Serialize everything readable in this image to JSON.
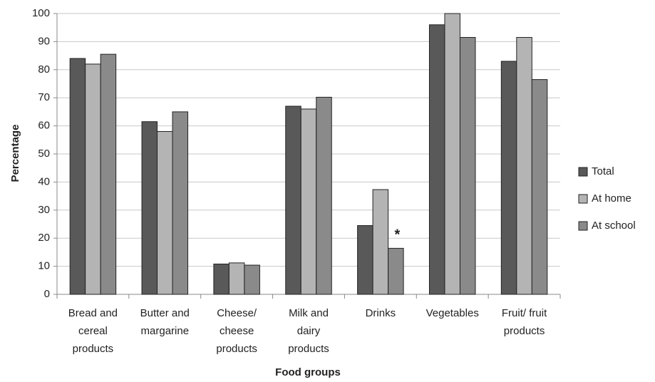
{
  "chart_data": {
    "type": "bar",
    "categories": [
      "Bread and cereal products",
      "Butter and margarine",
      "Cheese/ cheese products",
      "Milk and dairy products",
      "Drinks",
      "Vegetables",
      "Fruit/ fruit products"
    ],
    "series": [
      {
        "name": "Total",
        "color": "#595959",
        "values": [
          84,
          61.5,
          10.8,
          67,
          24.5,
          96,
          83
        ]
      },
      {
        "name": "At home",
        "color": "#b4b4b4",
        "values": [
          82,
          58,
          11.2,
          66,
          37.3,
          100,
          91.5
        ]
      },
      {
        "name": "At school",
        "color": "#8a8a8a",
        "values": [
          85.5,
          65,
          10.4,
          70.2,
          16.4,
          91.5,
          76.5
        ]
      }
    ],
    "ylim": [
      0,
      100
    ],
    "yticks": [
      0,
      10,
      20,
      30,
      40,
      50,
      60,
      70,
      80,
      90,
      100
    ],
    "ylabel": "Percentage",
    "xlabel": "Food groups",
    "annotation": "*",
    "grid": true,
    "legend": "right"
  }
}
